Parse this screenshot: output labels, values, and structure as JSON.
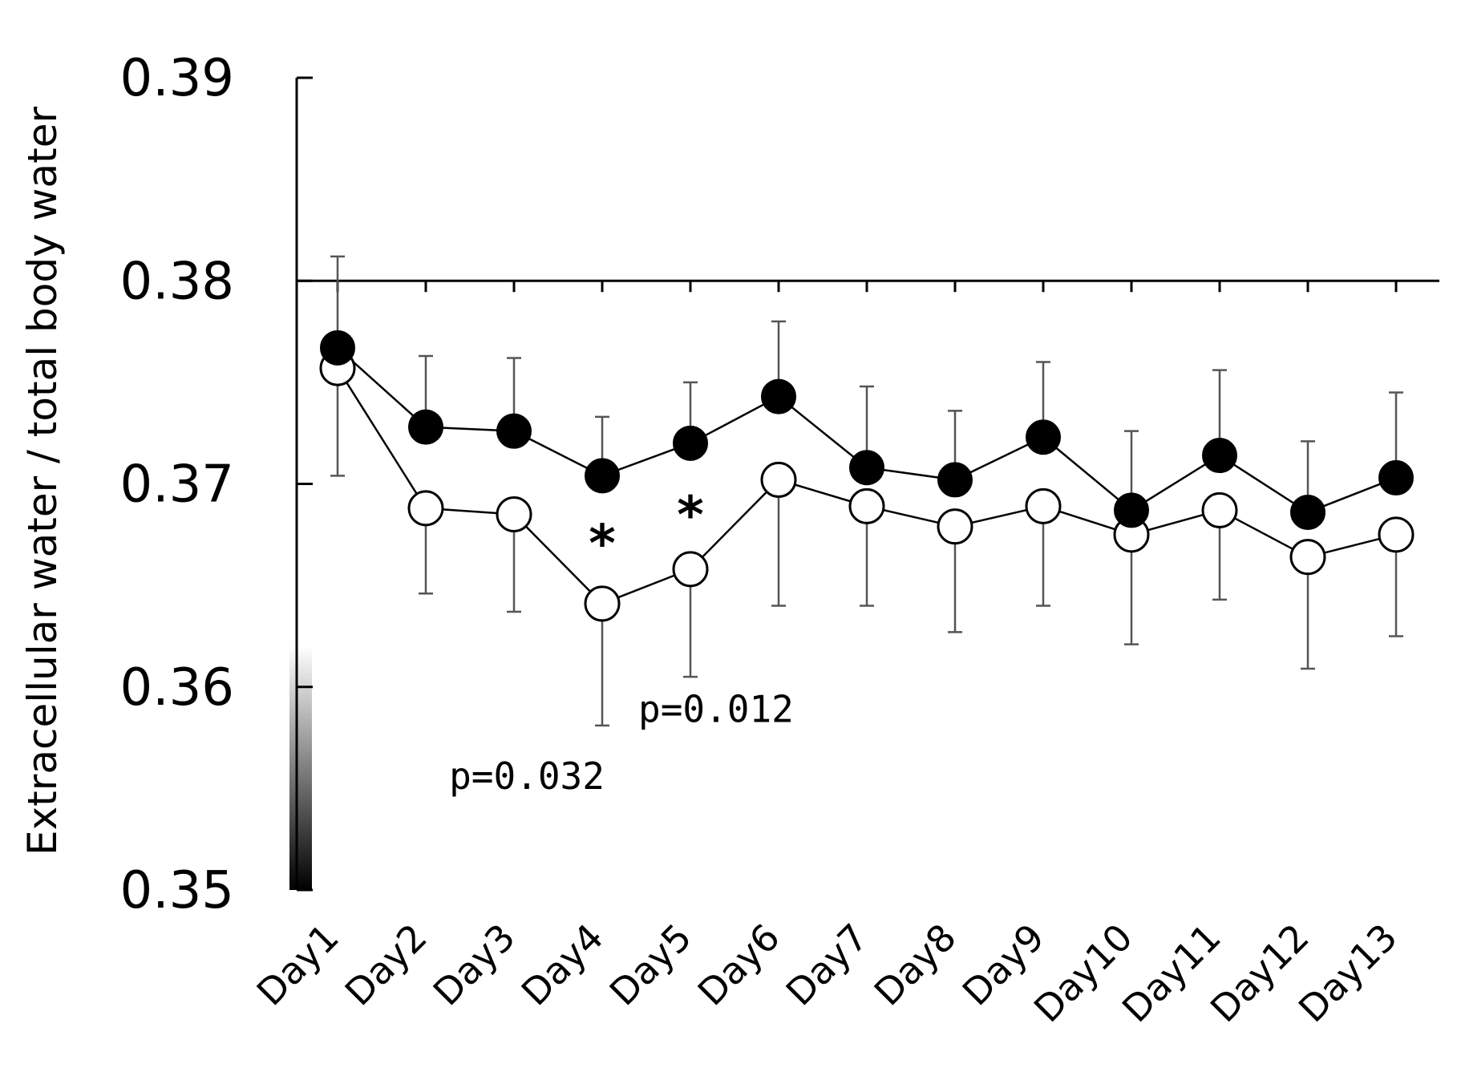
{
  "chart_data": {
    "type": "line",
    "title": "",
    "xlabel": "",
    "ylabel": "Extracellular water / total body water",
    "ylim": [
      0.35,
      0.39
    ],
    "ytick_values": [
      0.35,
      0.36,
      0.37,
      0.38,
      0.39
    ],
    "ytick_labels": [
      "0.35",
      "0.36",
      "0.37",
      "0.38",
      "0.39"
    ],
    "reference_line": 0.38,
    "categories": [
      "Day1",
      "Day2",
      "Day3",
      "Day4",
      "Day5",
      "Day6",
      "Day7",
      "Day8",
      "Day9",
      "Day10",
      "Day11",
      "Day12",
      "Day13"
    ],
    "series": [
      {
        "name": "filled",
        "marker": "filled-circle",
        "values": [
          0.3767,
          0.3728,
          0.3726,
          0.3704,
          0.372,
          0.3743,
          0.3708,
          0.3702,
          0.3723,
          0.3687,
          0.3714,
          0.3686,
          0.3703
        ],
        "error_upper": [
          0.3812,
          0.3763,
          0.3762,
          0.3733,
          0.375,
          0.378,
          0.3748,
          0.3736,
          0.376,
          0.3726,
          0.3756,
          0.3721,
          0.3745
        ]
      },
      {
        "name": "open",
        "marker": "open-circle",
        "values": [
          0.3757,
          0.3688,
          0.3685,
          0.3641,
          0.3658,
          0.3702,
          0.3689,
          0.3679,
          0.3689,
          0.3675,
          0.3687,
          0.3664,
          0.3675
        ],
        "error_lower": [
          0.3704,
          0.3646,
          0.3637,
          0.3581,
          0.3605,
          0.364,
          0.364,
          0.3627,
          0.364,
          0.3621,
          0.3643,
          0.3609,
          0.3625
        ]
      }
    ],
    "annotations": [
      {
        "text": "*",
        "category": "Day4",
        "y": 0.3673
      },
      {
        "text": "*",
        "category": "Day5",
        "y": 0.3687
      },
      {
        "text": "p=0.012",
        "category": "Day5",
        "y": 0.3589
      },
      {
        "text": "p=0.032",
        "category": "Day4",
        "y": 0.3556
      }
    ]
  }
}
